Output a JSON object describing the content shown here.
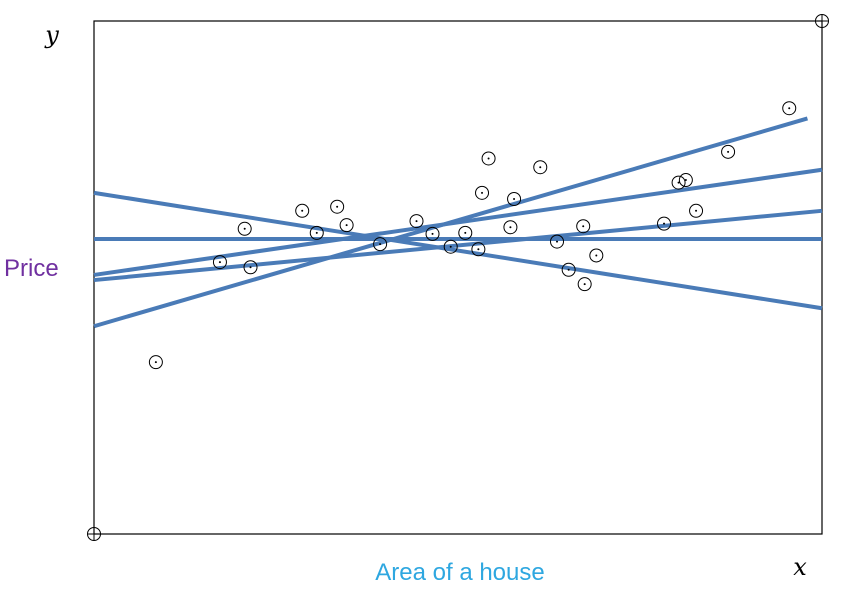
{
  "chart_data": {
    "type": "scatter",
    "title": "",
    "xlabel": "Area of a house",
    "ylabel": "Price",
    "x_symbol": "x",
    "y_symbol": "y",
    "xlim": [
      0,
      10
    ],
    "ylim": [
      0,
      10
    ],
    "grid": false,
    "colors": {
      "ylabel": "#7030a0",
      "xlabel": "#2ea7e0",
      "lines": "#4a7bb7",
      "points": "#000000",
      "frame": "#000000"
    },
    "points": [
      [
        0.85,
        3.35
      ],
      [
        1.73,
        5.3
      ],
      [
        2.07,
        5.95
      ],
      [
        2.15,
        5.2
      ],
      [
        2.86,
        6.3
      ],
      [
        3.06,
        5.87
      ],
      [
        3.34,
        6.38
      ],
      [
        3.47,
        6.02
      ],
      [
        3.93,
        5.65
      ],
      [
        4.43,
        6.1
      ],
      [
        4.65,
        5.85
      ],
      [
        4.9,
        5.6
      ],
      [
        5.1,
        5.87
      ],
      [
        5.28,
        5.55
      ],
      [
        5.33,
        6.65
      ],
      [
        5.42,
        7.32
      ],
      [
        5.72,
        5.98
      ],
      [
        5.77,
        6.53
      ],
      [
        6.13,
        7.15
      ],
      [
        6.36,
        5.7
      ],
      [
        6.52,
        5.15
      ],
      [
        6.72,
        6.0
      ],
      [
        6.74,
        4.87
      ],
      [
        6.9,
        5.43
      ],
      [
        7.83,
        6.05
      ],
      [
        8.03,
        6.85
      ],
      [
        8.13,
        6.9
      ],
      [
        8.27,
        6.3
      ],
      [
        8.71,
        7.45
      ],
      [
        9.55,
        8.3
      ]
    ],
    "lines": [
      {
        "y0": 5.75,
        "y1": 5.75
      },
      {
        "y0": 6.65,
        "y1": 4.4
      },
      {
        "y0": 5.05,
        "y1": 7.1
      },
      {
        "y0": 4.95,
        "y1": 6.3
      },
      {
        "y0": 4.05,
        "y1": 8.1,
        "x1": 9.8
      }
    ],
    "corner_markers": [
      [
        0,
        0
      ],
      [
        10,
        10
      ]
    ]
  }
}
